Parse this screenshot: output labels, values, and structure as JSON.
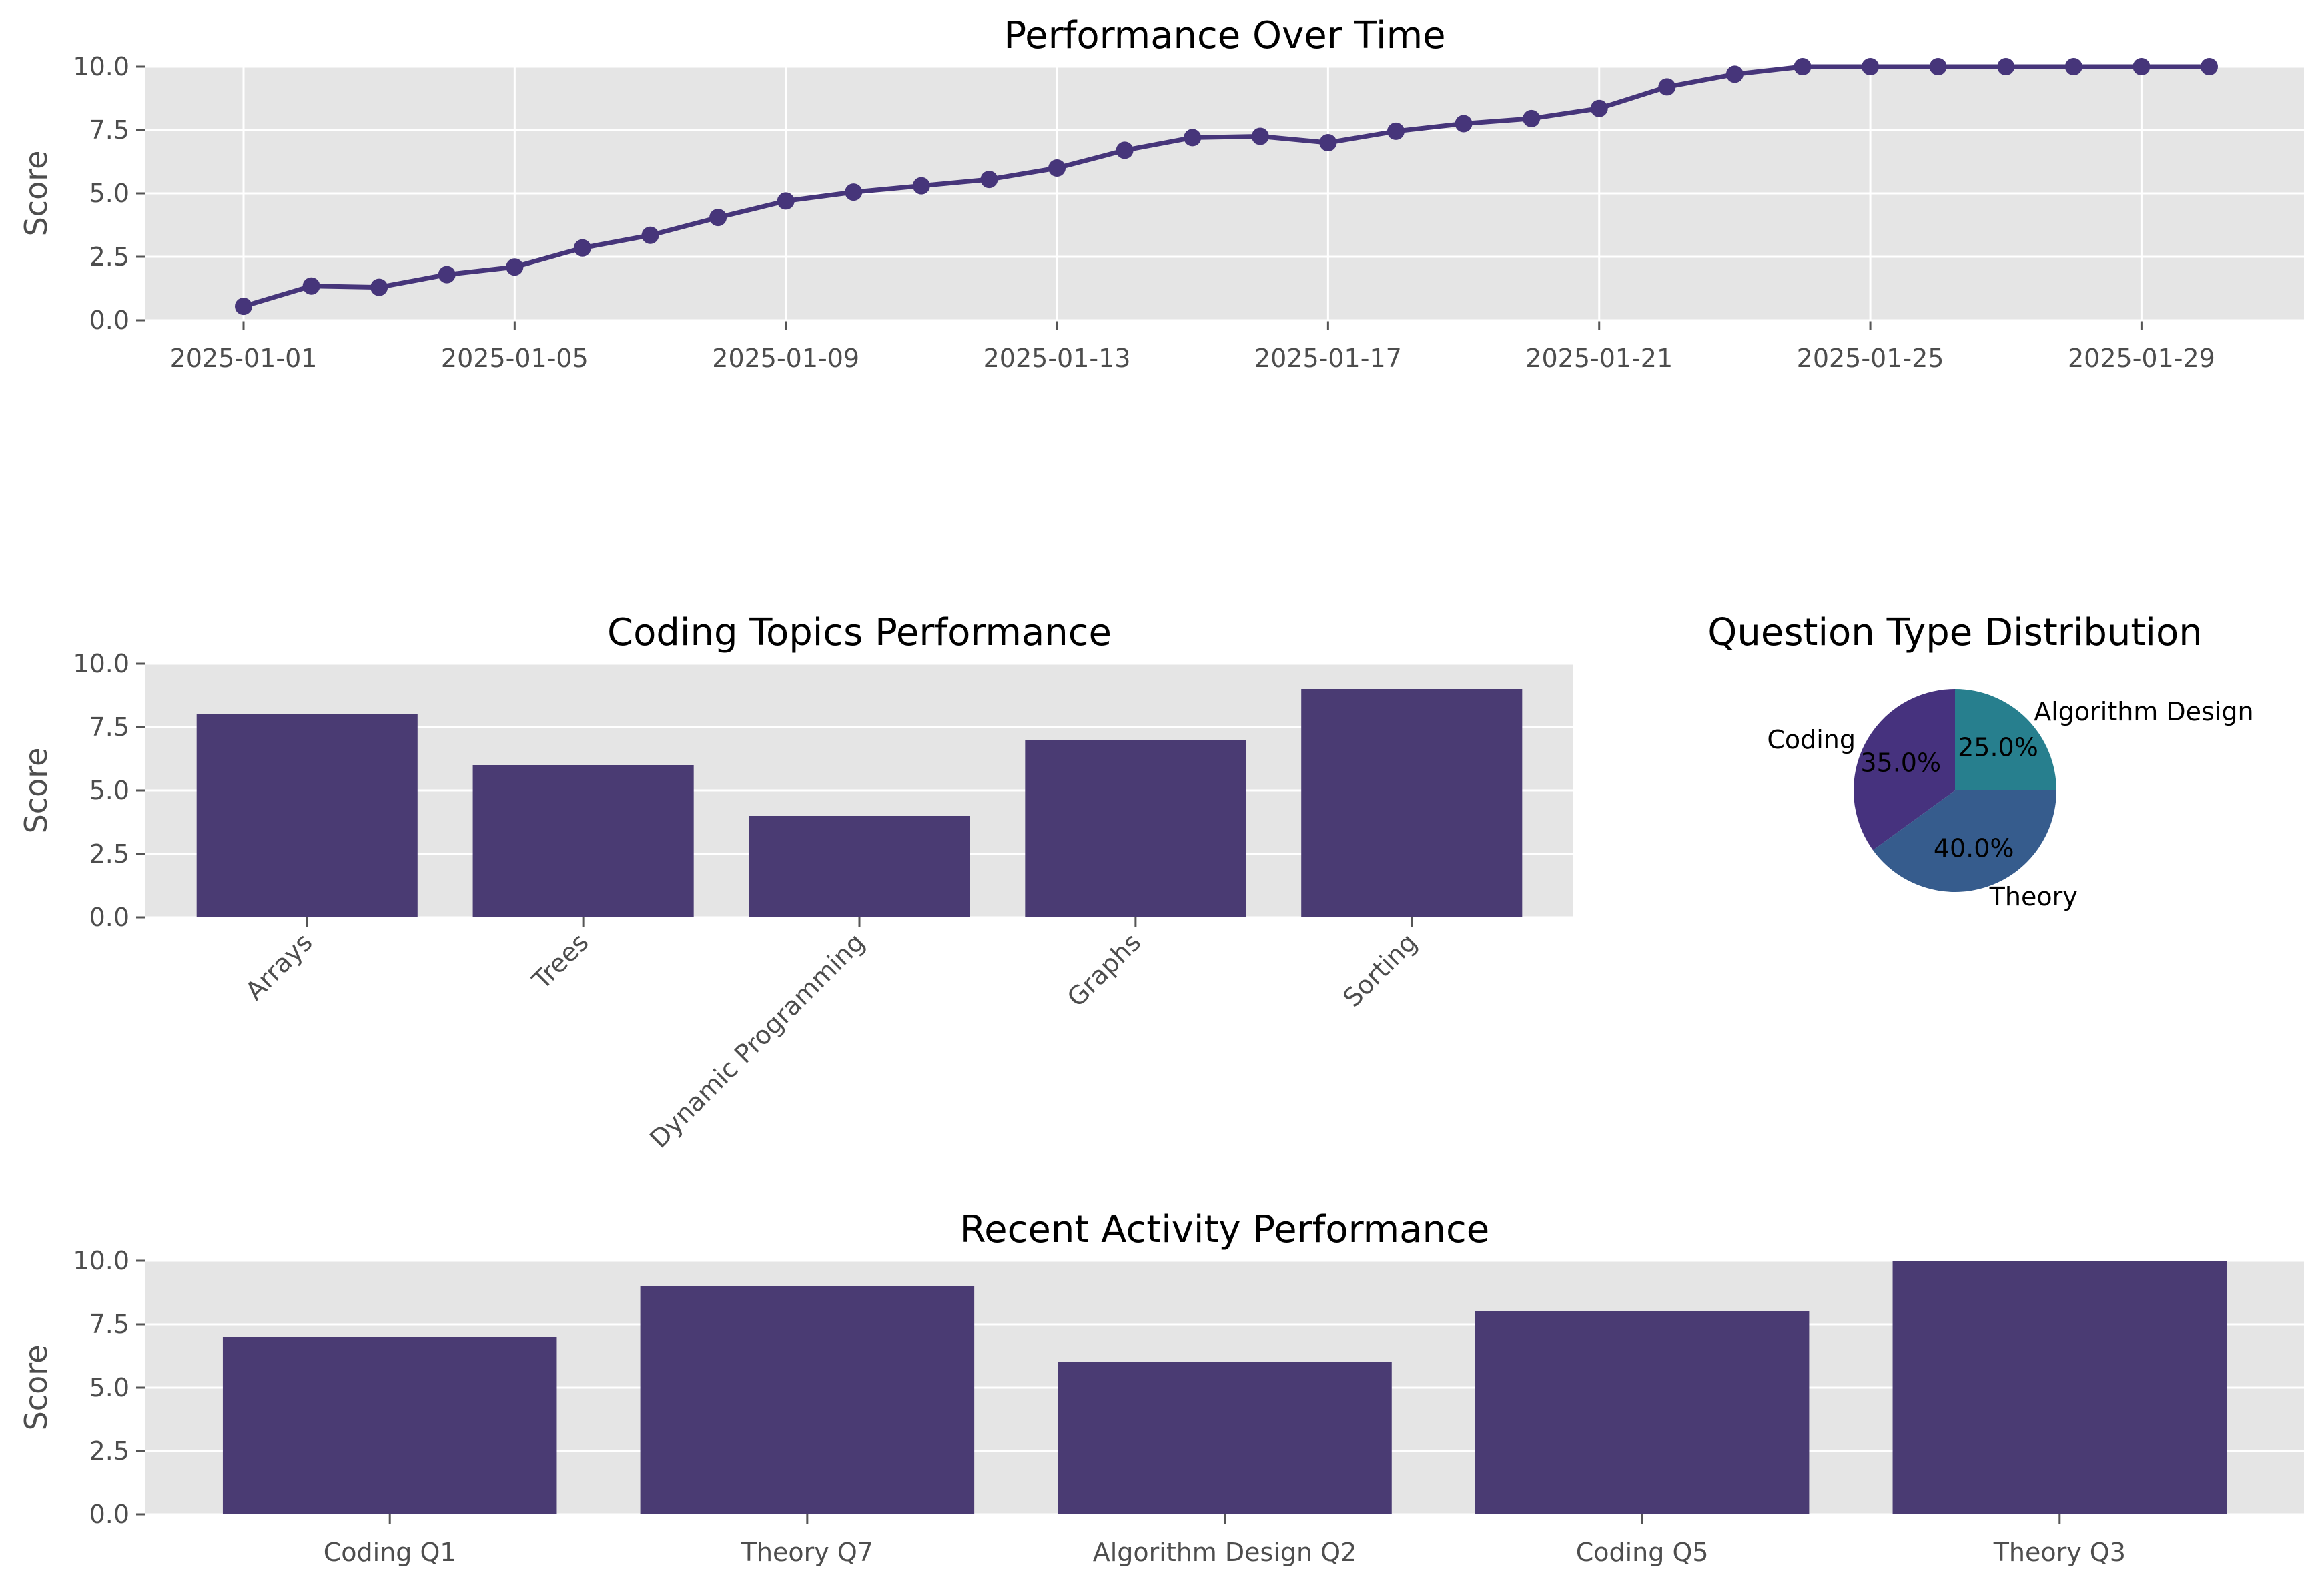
{
  "colors": {
    "panel_bg": "#e5e5e5",
    "grid": "#ffffff",
    "bar": "#4a3b73",
    "line": "#46357a",
    "tick_text": "#4d4d4d",
    "pie": [
      "#46327e",
      "#365c8d",
      "#277f8e"
    ]
  },
  "chart_data": [
    {
      "type": "line",
      "title": "Performance Over Time",
      "xlabel": "",
      "ylabel": "Score",
      "ylim": [
        0,
        10
      ],
      "yticks": [
        "0.0",
        "2.5",
        "5.0",
        "7.5",
        "10.0"
      ],
      "xticks": [
        "2025-01-01",
        "2025-01-05",
        "2025-01-09",
        "2025-01-13",
        "2025-01-17",
        "2025-01-21",
        "2025-01-25",
        "2025-01-29"
      ],
      "grid": true,
      "markers": true,
      "x": [
        "2025-01-01",
        "2025-01-02",
        "2025-01-03",
        "2025-01-04",
        "2025-01-05",
        "2025-01-06",
        "2025-01-07",
        "2025-01-08",
        "2025-01-09",
        "2025-01-10",
        "2025-01-11",
        "2025-01-12",
        "2025-01-13",
        "2025-01-14",
        "2025-01-15",
        "2025-01-16",
        "2025-01-17",
        "2025-01-18",
        "2025-01-19",
        "2025-01-20",
        "2025-01-21",
        "2025-01-22",
        "2025-01-23",
        "2025-01-24",
        "2025-01-25",
        "2025-01-26",
        "2025-01-27",
        "2025-01-28",
        "2025-01-29",
        "2025-01-30"
      ],
      "values": [
        0.55,
        1.35,
        1.3,
        1.8,
        2.1,
        2.85,
        3.35,
        4.05,
        4.7,
        5.05,
        5.3,
        5.55,
        6.0,
        6.7,
        7.2,
        7.25,
        7.0,
        7.45,
        7.75,
        7.95,
        8.35,
        9.2,
        9.7,
        10.0,
        10.0,
        10.0,
        10.0,
        10.0,
        10.0,
        10.0
      ]
    },
    {
      "type": "bar",
      "title": "Coding Topics Performance",
      "xlabel": "",
      "ylabel": "Score",
      "ylim": [
        0,
        10
      ],
      "yticks": [
        "0.0",
        "2.5",
        "5.0",
        "7.5",
        "10.0"
      ],
      "grid": true,
      "categories": [
        "Arrays",
        "Trees",
        "Dynamic Programming",
        "Graphs",
        "Sorting"
      ],
      "values": [
        8,
        6,
        4,
        7,
        9
      ]
    },
    {
      "type": "pie",
      "title": "Question Type Distribution",
      "labels": [
        "Coding",
        "Theory",
        "Algorithm Design"
      ],
      "values": [
        35,
        40,
        25
      ],
      "pct_labels": [
        "35.0%",
        "40.0%",
        "25.0%"
      ]
    },
    {
      "type": "bar",
      "title": "Recent Activity Performance",
      "xlabel": "",
      "ylabel": "Score",
      "ylim": [
        0,
        10
      ],
      "yticks": [
        "0.0",
        "2.5",
        "5.0",
        "7.5",
        "10.0"
      ],
      "grid": true,
      "categories": [
        "Coding Q1",
        "Theory Q7",
        "Algorithm Design Q2",
        "Coding Q5",
        "Theory Q3"
      ],
      "values": [
        7,
        9,
        6,
        8,
        10
      ]
    }
  ]
}
